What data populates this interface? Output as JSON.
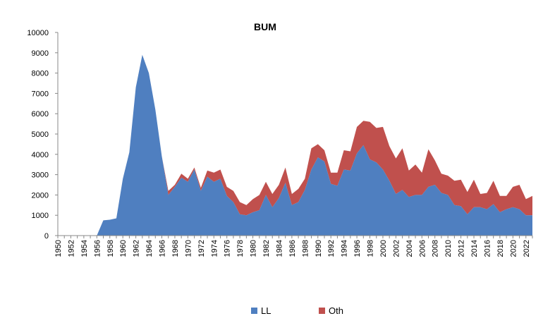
{
  "chart_data": {
    "type": "area",
    "stacked": true,
    "title": "BUM",
    "xlabel": "",
    "ylabel": "",
    "ylim": [
      0,
      10000
    ],
    "yticks": [
      0,
      1000,
      2000,
      3000,
      4000,
      5000,
      6000,
      7000,
      8000,
      9000,
      10000
    ],
    "grid": false,
    "legend_position": "bottom",
    "x": [
      1950,
      1951,
      1952,
      1953,
      1954,
      1955,
      1956,
      1957,
      1958,
      1959,
      1960,
      1961,
      1962,
      1963,
      1964,
      1965,
      1966,
      1967,
      1968,
      1969,
      1970,
      1971,
      1972,
      1973,
      1974,
      1975,
      1976,
      1977,
      1978,
      1979,
      1980,
      1981,
      1982,
      1983,
      1984,
      1985,
      1986,
      1987,
      1988,
      1989,
      1990,
      1991,
      1992,
      1993,
      1994,
      1995,
      1996,
      1997,
      1998,
      1999,
      2000,
      2001,
      2002,
      2003,
      2004,
      2005,
      2006,
      2007,
      2008,
      2009,
      2010,
      2011,
      2012,
      2013,
      2014,
      2015,
      2016,
      2017,
      2018,
      2019,
      2020,
      2021,
      2022,
      2023
    ],
    "xtick_labels": [
      "1950",
      "1952",
      "1954",
      "1956",
      "1958",
      "1960",
      "1962",
      "1964",
      "1966",
      "1968",
      "1970",
      "1972",
      "1974",
      "1976",
      "1978",
      "1980",
      "1982",
      "1984",
      "1986",
      "1988",
      "1990",
      "1992",
      "1994",
      "1996",
      "1998",
      "2000",
      "2002",
      "2004",
      "2006",
      "2008",
      "2010",
      "2012",
      "2014",
      "2016",
      "2018",
      "2020",
      "2022"
    ],
    "series": [
      {
        "name": "LL",
        "color": "#4f7fc0",
        "values": [
          0,
          0,
          0,
          0,
          0,
          0,
          0,
          750,
          780,
          850,
          2800,
          4100,
          7300,
          8900,
          8000,
          6200,
          3900,
          2000,
          2400,
          2850,
          2650,
          3250,
          2200,
          2900,
          2650,
          2800,
          1950,
          1650,
          1050,
          1000,
          1150,
          1250,
          2000,
          1400,
          1850,
          2600,
          1500,
          1650,
          2250,
          3250,
          3850,
          3650,
          2550,
          2450,
          3250,
          3200,
          4050,
          4450,
          3750,
          3600,
          3250,
          2700,
          2050,
          2250,
          1900,
          2000,
          2000,
          2400,
          2500,
          2100,
          2000,
          1500,
          1450,
          1050,
          1400,
          1400,
          1300,
          1550,
          1150,
          1300,
          1400,
          1300,
          1000,
          1000
        ]
      },
      {
        "name": "Oth",
        "color": "#c0504d",
        "values": [
          0,
          0,
          0,
          0,
          0,
          0,
          0,
          0,
          0,
          0,
          0,
          0,
          0,
          0,
          0,
          0,
          0,
          200,
          100,
          200,
          150,
          100,
          150,
          300,
          450,
          450,
          450,
          550,
          600,
          500,
          650,
          750,
          650,
          650,
          650,
          750,
          550,
          650,
          550,
          1050,
          650,
          550,
          550,
          650,
          950,
          950,
          1300,
          1200,
          1850,
          1700,
          2100,
          1700,
          1750,
          2050,
          1300,
          1500,
          1100,
          1850,
          1200,
          950,
          950,
          1200,
          1300,
          1100,
          1350,
          650,
          800,
          1150,
          800,
          650,
          1000,
          1200,
          800,
          950
        ]
      }
    ]
  }
}
